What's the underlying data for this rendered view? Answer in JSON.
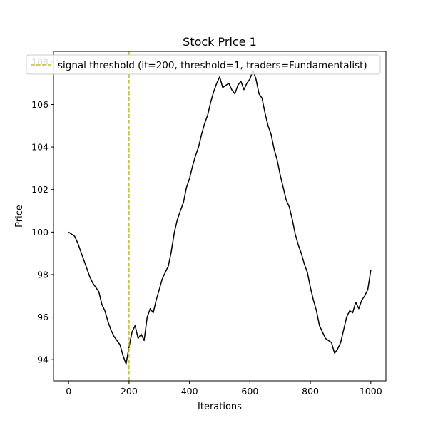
{
  "chart_data": {
    "type": "line",
    "title": "Stock Price 1",
    "xlabel": "Iterations",
    "ylabel": "Price",
    "xlim": [
      -50,
      1050
    ],
    "ylim": [
      93.0,
      108.5
    ],
    "xticks": [
      0,
      200,
      400,
      600,
      800,
      1000
    ],
    "yticks": [
      94,
      96,
      98,
      100,
      102,
      104,
      106,
      108
    ],
    "grid": false,
    "legend_position": "top-center",
    "series": [
      {
        "color": "#000000",
        "x": [
          0,
          10,
          20,
          30,
          40,
          50,
          60,
          70,
          80,
          90,
          100,
          110,
          120,
          130,
          140,
          150,
          160,
          170,
          180,
          190,
          200,
          210,
          220,
          230,
          240,
          250,
          260,
          270,
          280,
          290,
          300,
          310,
          320,
          330,
          340,
          350,
          360,
          370,
          380,
          390,
          400,
          410,
          420,
          430,
          440,
          450,
          460,
          470,
          480,
          490,
          500,
          510,
          520,
          530,
          540,
          550,
          560,
          570,
          580,
          590,
          600,
          610,
          620,
          630,
          640,
          650,
          660,
          670,
          680,
          690,
          700,
          710,
          720,
          730,
          740,
          750,
          760,
          770,
          780,
          790,
          800,
          810,
          820,
          830,
          840,
          850,
          860,
          870,
          880,
          890,
          900,
          910,
          920,
          930,
          940,
          950,
          960,
          970,
          980,
          990,
          1000
        ],
        "y": [
          100.0,
          99.9,
          99.8,
          99.5,
          99.1,
          98.7,
          98.3,
          97.9,
          97.6,
          97.4,
          97.2,
          96.6,
          96.3,
          95.8,
          95.4,
          95.1,
          94.9,
          94.7,
          94.2,
          93.8,
          94.6,
          95.3,
          95.6,
          95.0,
          95.2,
          94.9,
          96.0,
          96.4,
          96.2,
          96.8,
          97.3,
          97.8,
          98.1,
          98.4,
          99.1,
          100.0,
          100.6,
          101.0,
          101.4,
          102.1,
          102.5,
          103.1,
          103.6,
          104.0,
          104.6,
          105.1,
          105.5,
          106.1,
          106.6,
          107.0,
          107.3,
          106.8,
          106.9,
          107.0,
          106.7,
          106.5,
          106.9,
          107.1,
          106.7,
          107.0,
          107.2,
          107.6,
          107.2,
          106.5,
          106.3,
          105.6,
          105.0,
          104.6,
          103.9,
          103.4,
          102.7,
          102.1,
          101.5,
          101.2,
          100.6,
          99.9,
          99.4,
          99.0,
          98.5,
          98.1,
          97.4,
          96.8,
          96.3,
          95.6,
          95.3,
          95.0,
          94.9,
          94.8,
          94.3,
          94.5,
          94.8,
          95.4,
          96.0,
          96.3,
          96.2,
          96.7,
          96.4,
          96.8,
          97.0,
          97.3,
          98.2
        ]
      }
    ],
    "threshold": {
      "x": 200,
      "color": "#bcbd22",
      "label": "signal threshold (it=200, threshold=1, traders=Fundamentalist)"
    }
  }
}
